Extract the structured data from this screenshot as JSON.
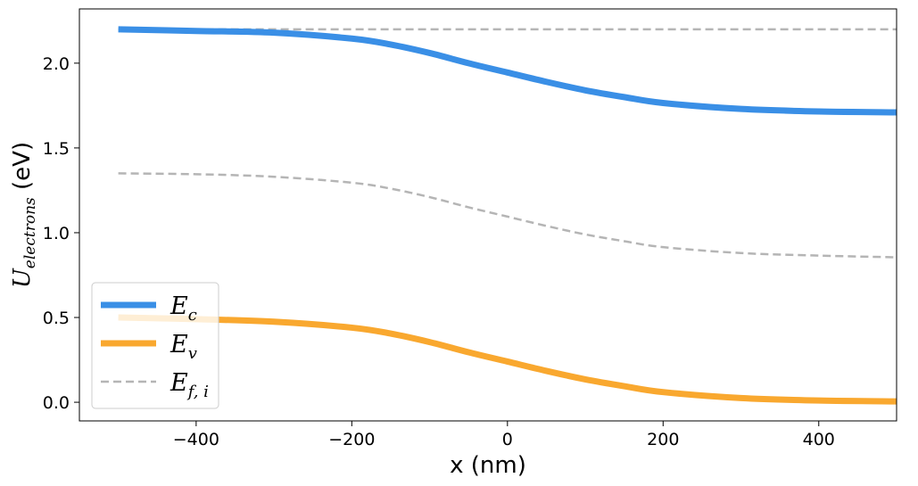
{
  "chart_data": {
    "type": "line",
    "xlabel": "x (nm)",
    "ylabel": {
      "main": "U",
      "sub": "electrons",
      "unit": " (eV)"
    },
    "xlim": [
      -550,
      500
    ],
    "ylim": [
      -0.11,
      2.32
    ],
    "x_ticks": [
      {
        "value": -400,
        "label": "−400"
      },
      {
        "value": -200,
        "label": "−200"
      },
      {
        "value": 0,
        "label": "0"
      },
      {
        "value": 200,
        "label": "200"
      },
      {
        "value": 400,
        "label": "400"
      }
    ],
    "y_ticks": [
      {
        "value": 0.0,
        "label": "0.0"
      },
      {
        "value": 0.5,
        "label": "0.5"
      },
      {
        "value": 1.0,
        "label": "1.0"
      },
      {
        "value": 1.5,
        "label": "1.5"
      },
      {
        "value": 2.0,
        "label": "2.0"
      }
    ],
    "grid": false,
    "legend_position": "lower-left",
    "series": [
      {
        "name": "E_c",
        "label_main": "E",
        "label_sub": "c",
        "color": "#3a8fe6",
        "style": "solid",
        "width": 7,
        "x": [
          -500,
          -400,
          -300,
          -200,
          -150,
          -100,
          -50,
          0,
          50,
          100,
          150,
          200,
          300,
          400,
          500
        ],
        "y": [
          2.2,
          2.19,
          2.18,
          2.145,
          2.11,
          2.06,
          2.0,
          1.945,
          1.89,
          1.84,
          1.8,
          1.765,
          1.73,
          1.715,
          1.71
        ]
      },
      {
        "name": "E_v",
        "label_main": "E",
        "label_sub": "v",
        "color": "#f9a82f",
        "style": "solid",
        "width": 7,
        "x": [
          -500,
          -400,
          -300,
          -200,
          -150,
          -100,
          -50,
          0,
          50,
          100,
          150,
          200,
          300,
          400,
          500
        ],
        "y": [
          0.5,
          0.49,
          0.475,
          0.44,
          0.405,
          0.355,
          0.295,
          0.24,
          0.185,
          0.135,
          0.095,
          0.06,
          0.025,
          0.01,
          0.005
        ]
      },
      {
        "name": "E_f,i",
        "label_main": "E",
        "label_sub": "f, i",
        "color": "#b5b5b5",
        "style": "dashed",
        "width": 2.5,
        "x": [
          -500,
          -400,
          -300,
          -200,
          -150,
          -100,
          -50,
          0,
          50,
          100,
          150,
          200,
          300,
          400,
          500
        ],
        "y": [
          1.35,
          1.345,
          1.33,
          1.295,
          1.26,
          1.21,
          1.15,
          1.095,
          1.04,
          0.99,
          0.95,
          0.915,
          0.88,
          0.865,
          0.855
        ]
      },
      {
        "name": "",
        "legend": false,
        "color": "#b5b5b5",
        "style": "dashed",
        "width": 2.5,
        "x": [
          -500,
          500
        ],
        "y": [
          2.2,
          2.2
        ]
      }
    ]
  }
}
